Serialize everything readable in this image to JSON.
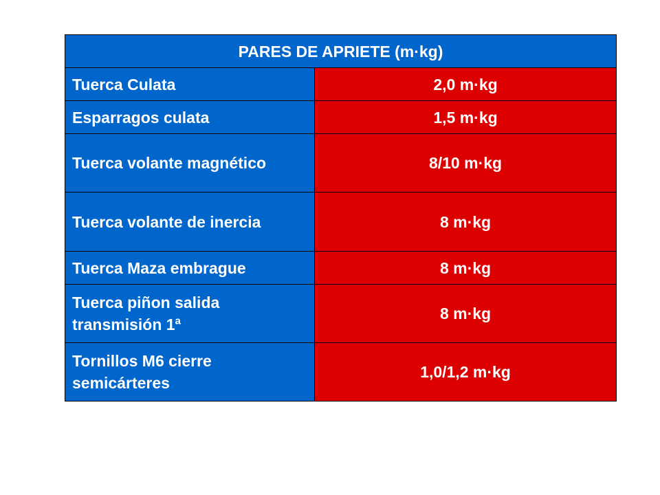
{
  "table": {
    "title": "PARES DE APRIETE (m·kg)",
    "rows": [
      {
        "label": "Tuerca Culata",
        "value": "2,0 m·kg"
      },
      {
        "label": "Esparragos culata",
        "value": "1,5 m·kg"
      },
      {
        "label": "Tuerca volante magnético",
        "value": "8/10 m·kg"
      },
      {
        "label": "Tuerca volante de inercia",
        "value": "8 m·kg"
      },
      {
        "label": "Tuerca Maza embrague",
        "value": "8 m·kg"
      },
      {
        "label": "Tuerca piñon salida transmisión 1ª",
        "value": "8 m·kg"
      },
      {
        "label": "Tornillos M6  cierre semicárteres",
        "value": "1,0/1,2 m·kg"
      }
    ]
  },
  "colors": {
    "label_background": "#0066cc",
    "value_background": "#dd0000",
    "text": "#ffffff"
  }
}
